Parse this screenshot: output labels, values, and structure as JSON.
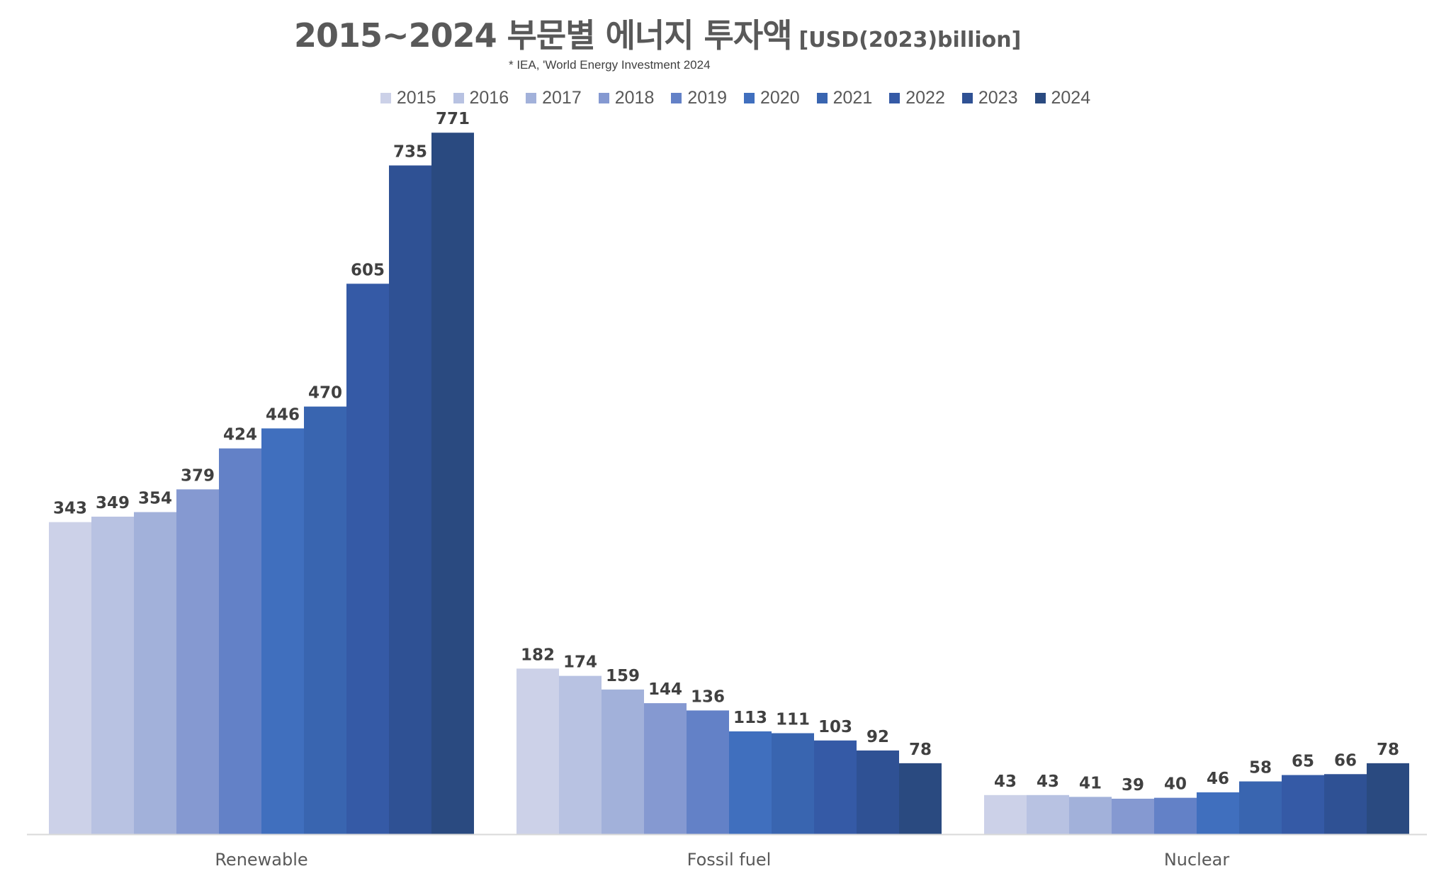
{
  "title": {
    "main": "2015~2024 부문별 에너지 투자액",
    "unit": "[USD(2023)billion]",
    "source": "* IEA, 'World Energy Investment 2024"
  },
  "colors": [
    "#ccd1e8",
    "#b8c2e2",
    "#a2b1da",
    "#8599d1",
    "#6381c7",
    "#406fbe",
    "#3965b0",
    "#355aa6",
    "#2f5194",
    "#2a4a80"
  ],
  "chart_data": {
    "type": "bar",
    "categories": [
      "Renewable",
      "Fossil fuel",
      "Nuclear"
    ],
    "series": [
      {
        "name": "2015",
        "values": [
          343,
          182,
          43
        ]
      },
      {
        "name": "2016",
        "values": [
          349,
          174,
          43
        ]
      },
      {
        "name": "2017",
        "values": [
          354,
          159,
          41
        ]
      },
      {
        "name": "2018",
        "values": [
          379,
          144,
          39
        ]
      },
      {
        "name": "2019",
        "values": [
          424,
          136,
          40
        ]
      },
      {
        "name": "2020",
        "values": [
          446,
          113,
          46
        ]
      },
      {
        "name": "2021",
        "values": [
          470,
          111,
          58
        ]
      },
      {
        "name": "2022",
        "values": [
          605,
          103,
          65
        ]
      },
      {
        "name": "2023",
        "values": [
          735,
          92,
          66
        ]
      },
      {
        "name": "2024",
        "values": [
          771,
          78,
          78
        ]
      }
    ],
    "title": "2015~2024 부문별 에너지 투자액 [USD(2023)billion]",
    "ylim": [
      0,
      800
    ],
    "grid": false,
    "legend": "top-center",
    "data_labels": true
  }
}
